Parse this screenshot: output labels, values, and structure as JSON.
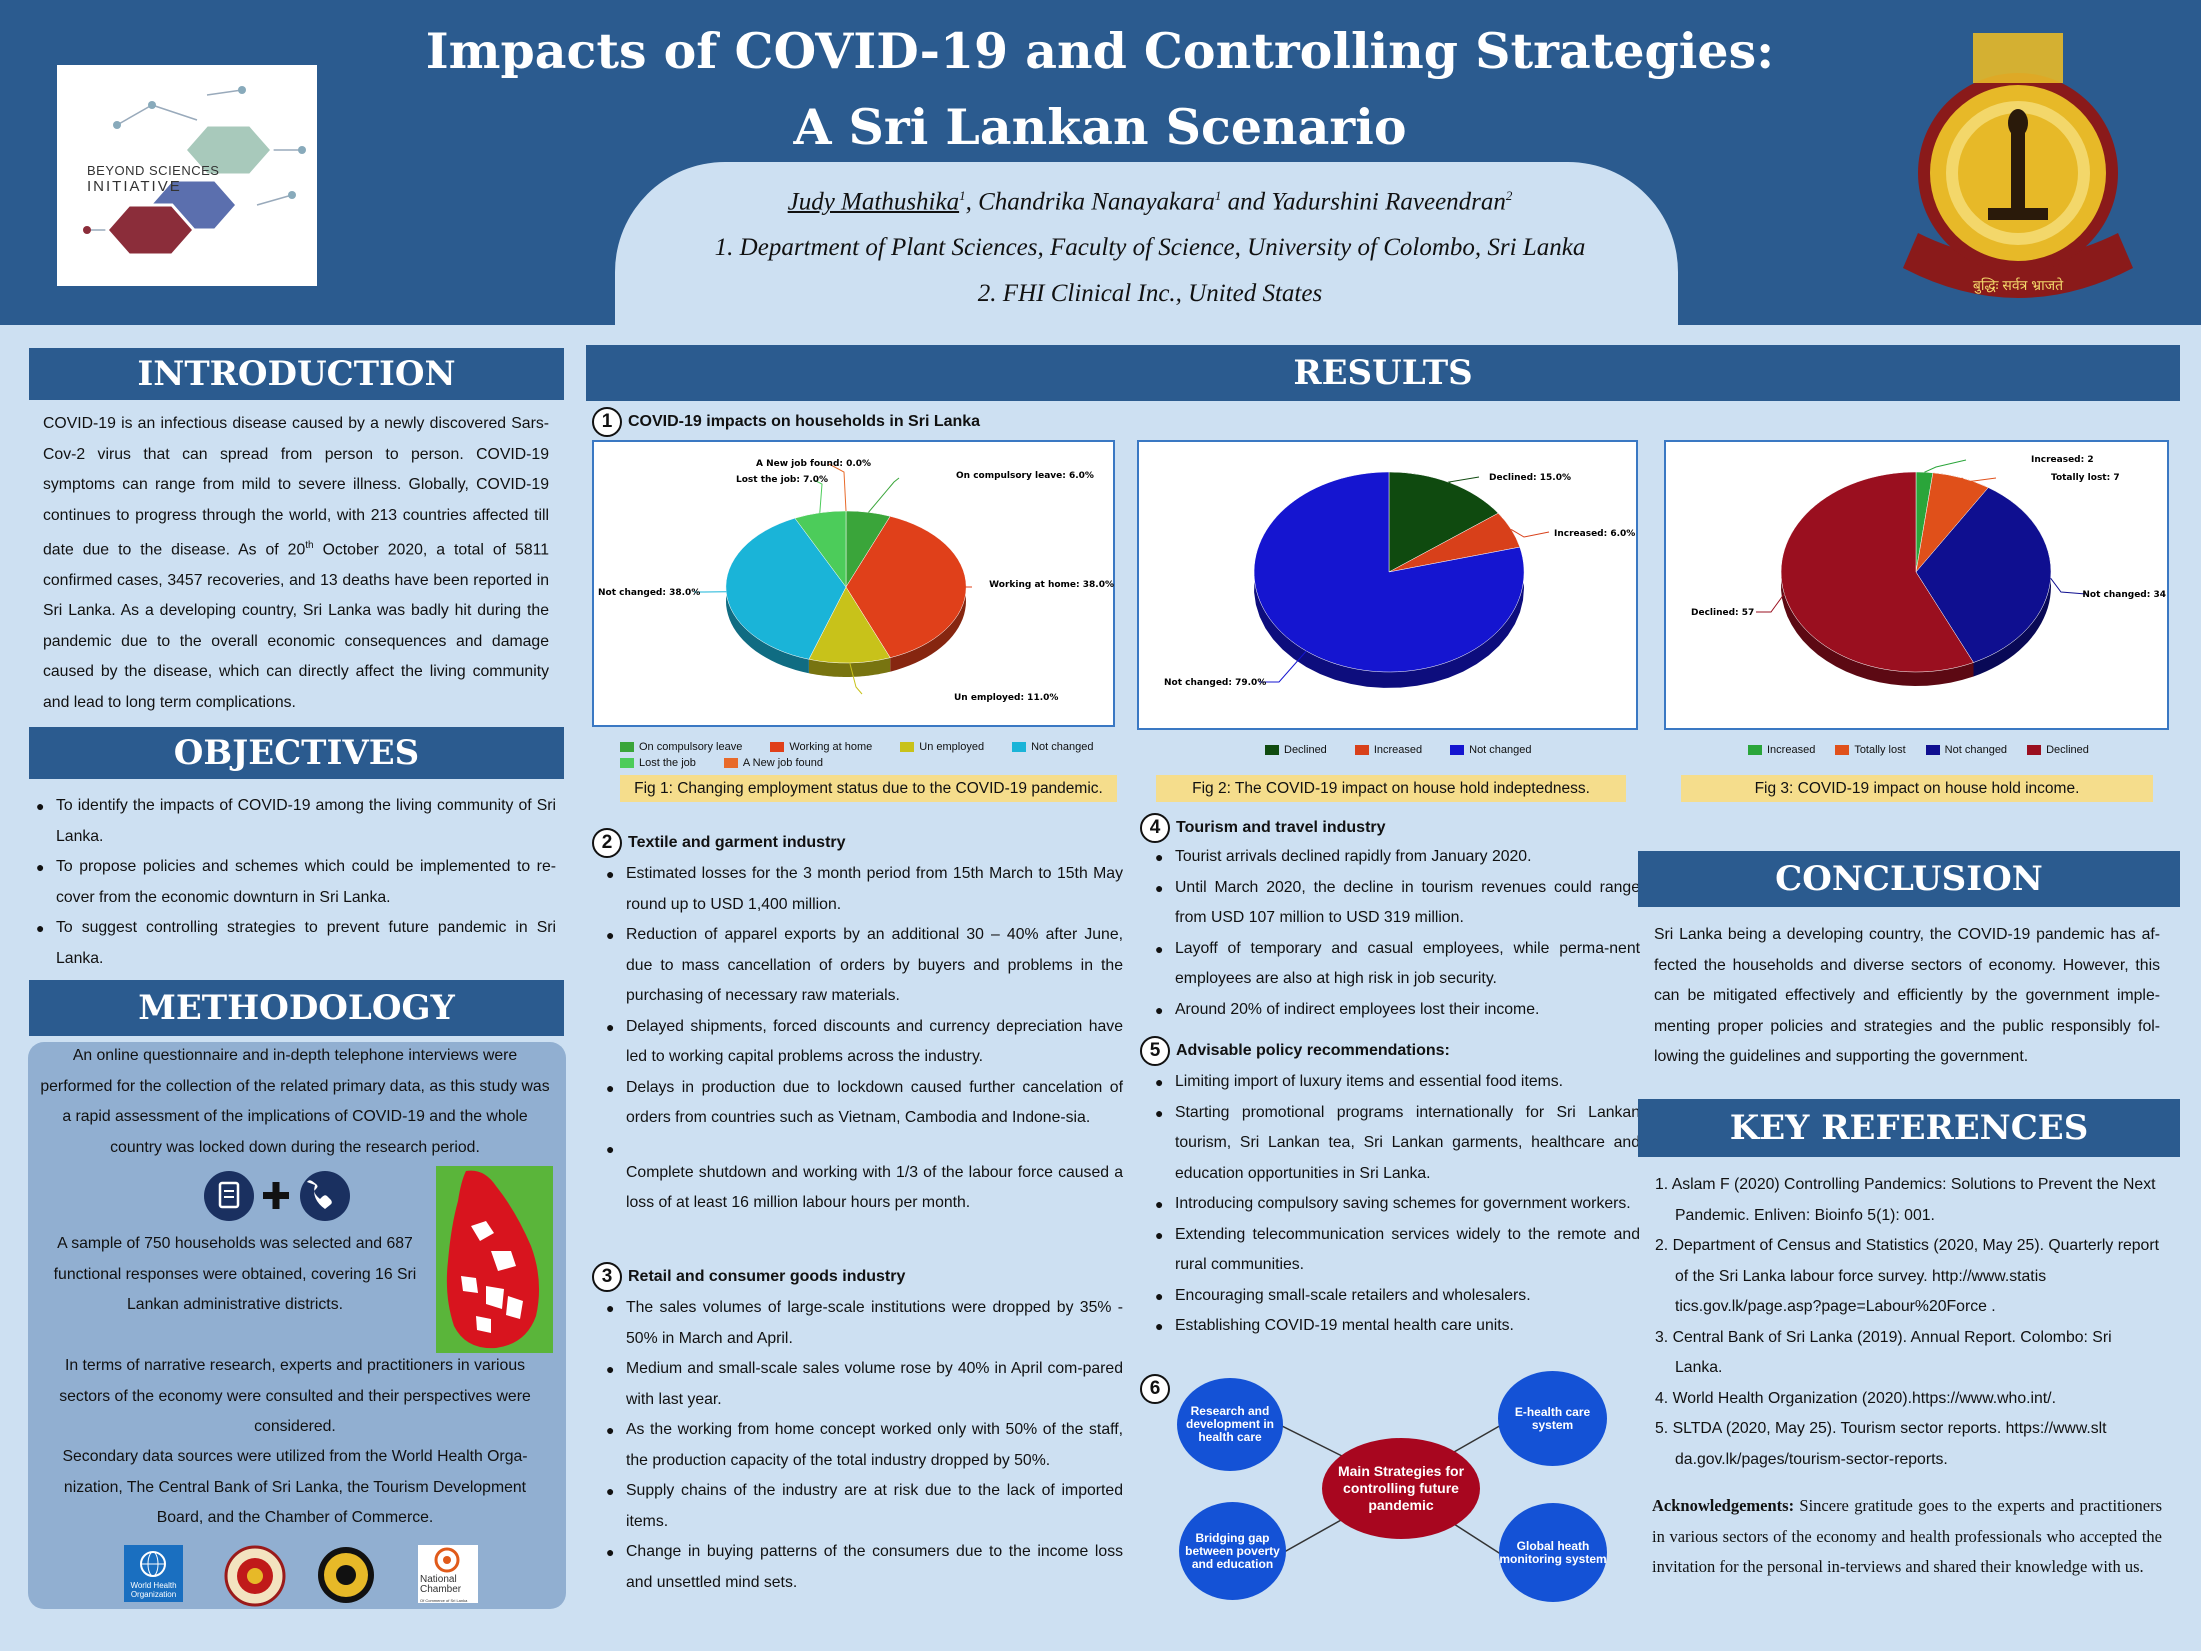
{
  "header": {
    "title_line1": "Impacts of COVID-19 and Controlling Strategies:",
    "title_line2": "A Sri Lankan Scenario",
    "authors": {
      "first": "Judy Mathushika",
      "sup1": "1",
      "rest": ", Chandrika Nanayakara",
      "sup2": "1",
      "rest2": " and Yadurshini Raveendran",
      "sup3": "2"
    },
    "affiliation1": "1. Department of Plant Sciences, Faculty of Science, University of Colombo, Sri Lanka",
    "affiliation2": "2. FHI Clinical Inc., United States",
    "logo_left": {
      "line1": "BEYOND SCIENCES",
      "line2": "INITIATIVE"
    },
    "crest_motto": "बुद्धिः सर्वत्र भ्राजते"
  },
  "introduction": {
    "heading": "INTRODUCTION",
    "text_a": "COVID-19 is an infectious disease caused by a newly discovered Sars-Cov-2 virus that can spread from person to person. COVID-19 symptoms can range from mild to severe illness. Globally, COVID-19 continues to progress through the world, with 213 countries affected till date due to the disease. As of 20",
    "text_sup": "th",
    "text_b": " October 2020, a total of 5811 confirmed cases, 3457 recoveries, and 13 deaths have been reported in Sri Lanka. As a developing country, Sri Lanka was badly hit during the pandemic due to the overall economic consequences and damage caused by the disease, which can directly affect the living community and lead to long term complications."
  },
  "objectives": {
    "heading": "OBJECTIVES",
    "items": [
      "To identify the impacts of COVID-19 among the living community of Sri Lanka.",
      "To propose policies and schemes which could be implemented to re-cover from the economic downturn in Sri Lanka.",
      "To suggest controlling strategies to prevent future pandemic in Sri Lanka."
    ]
  },
  "methodology": {
    "heading": "METHODOLOGY",
    "p1": "An online questionnaire and in-depth telephone interviews were performed for the collection of the related primary data, as this study was a rapid assessment of the implications of COVID-19 and the whole country was locked down during the research period.",
    "p2": "A sample of 750 households was selected and 687 functional responses were obtained, covering 16 Sri Lankan administrative districts.",
    "p3": "In terms of narrative research, experts and practitioners in various sectors of the economy were consulted and their perspectives were considered.",
    "p4": "Secondary data sources were utilized from the World Health Orga-nization, The Central Bank of Sri Lanka, the Tourism Development Board, and the Chamber of Commerce.",
    "logos": {
      "who_line1": "World Health",
      "who_line2": "Organization",
      "chamber_line1": "National",
      "chamber_line2": "Chamber",
      "chamber_line3": "Of Commerce of Sri Lanka"
    }
  },
  "results": {
    "heading": "RESULTS",
    "s1": {
      "num": "1",
      "title": "COVID-19 impacts on households in Sri Lanka"
    },
    "s2": {
      "num": "2",
      "title": "Textile and garment industry",
      "items": [
        "Estimated losses for the 3 month period from 15th March to 15th May round up to USD 1,400 million.",
        "Reduction of apparel exports by an additional 30 – 40% after June, due to mass cancellation of orders by buyers and problems in the purchasing of necessary raw materials.",
        "Delayed shipments, forced discounts and currency depreciation have led to working capital problems across the industry.",
        "Delays in production due to lockdown caused further cancelation of orders from countries such as Vietnam, Cambodia and Indone-sia.",
        "Complete shutdown and working with 1/3 of the labour force caused a loss of at least 16 million labour hours per month."
      ]
    },
    "s3": {
      "num": "3",
      "title": "Retail and consumer goods industry",
      "items": [
        "The sales volumes of large-scale institutions were dropped by 35% - 50% in March and April.",
        "Medium and small-scale sales volume rose by 40% in April com-pared with last year.",
        "As the working from home concept worked only with 50% of the staff, the production capacity of the total industry dropped by 50%.",
        "Supply chains of the industry are at risk due to the lack of imported items.",
        "Change in buying patterns of the consumers due to the income loss and unsettled mind sets."
      ]
    },
    "s4": {
      "num": "4",
      "title": "Tourism and travel industry",
      "items": [
        "Tourist arrivals declined rapidly from January 2020.",
        "Until March 2020, the decline in tourism revenues could range from USD 107 million to USD 319 million.",
        "Layoff of temporary and casual employees, while perma-nent employees are also at high risk in job security.",
        "Around 20% of indirect employees lost their income."
      ]
    },
    "s5": {
      "num": "5",
      "title": "Advisable policy recommendations:",
      "items": [
        "Limiting import of luxury items and essential food items.",
        "Starting promotional programs internationally for Sri Lankan tourism, Sri Lankan tea, Sri Lankan garments, healthcare and education opportunities in Sri Lanka.",
        "Introducing compulsory saving schemes for government workers.",
        "Extending telecommunication services  widely to the remote and rural communities.",
        "Encouraging small-scale retailers and wholesalers.",
        "Establishing COVID-19 mental health care units."
      ]
    },
    "s6": {
      "num": "6",
      "center": "Main Strategies for controlling future pandemic",
      "b1": "Research and development in health care",
      "b2": "E-health care system",
      "b3": "Bridging gap between poverty and education",
      "b4": "Global heath monitoring system"
    }
  },
  "chart_data": [
    {
      "type": "pie",
      "caption": "Fig 1: Changing employment status due to the COVID-19 pandemic.",
      "slices": [
        {
          "name": "On compulsory leave",
          "value": 6.0,
          "label": "On compulsory leave: 6.0%",
          "color": "#3aa53a"
        },
        {
          "name": "Working at home",
          "value": 38.0,
          "label": "Working at home: 38.0%",
          "color": "#e0401a"
        },
        {
          "name": "Un employed",
          "value": 11.0,
          "label": "Un employed: 11.0%",
          "color": "#c8c21a"
        },
        {
          "name": "Not changed",
          "value": 38.0,
          "label": "Not changed: 38.0%",
          "color": "#1ab4d8"
        },
        {
          "name": "Lost the job",
          "value": 7.0,
          "label": "Lost the job: 7.0%",
          "color": "#4ccc5a"
        },
        {
          "name": "A New job found",
          "value": 0.0,
          "label": "A New job found: 0.0%",
          "color": "#e86a2a"
        }
      ]
    },
    {
      "type": "pie",
      "caption": "Fig 2: The COVID-19 impact on house hold indeptedness.",
      "slices": [
        {
          "name": "Declined",
          "value": 15.0,
          "label": "Declined: 15.0%",
          "color": "#0f4a0f"
        },
        {
          "name": "Increased",
          "value": 6.0,
          "label": "Increased: 6.0%",
          "color": "#d8401a"
        },
        {
          "name": "Not changed",
          "value": 79.0,
          "label": "Not changed: 79.0%",
          "color": "#1515d0"
        }
      ]
    },
    {
      "type": "pie",
      "caption": "Fig 3: COVID-19 impact on house hold income.",
      "slices": [
        {
          "name": "Increased",
          "value": 2,
          "label": "Increased: 2",
          "color": "#2aa53a"
        },
        {
          "name": "Totally lost",
          "value": 7,
          "label": "Totally lost: 7",
          "color": "#e0501a"
        },
        {
          "name": "Not changed",
          "value": 34,
          "label": "Not changed: 34",
          "color": "#0f0f90"
        },
        {
          "name": "Declined",
          "value": 57,
          "label": "Declined: 57",
          "color": "#9a0f1f"
        }
      ]
    }
  ],
  "conclusion": {
    "heading": "CONCLUSION",
    "text": "Sri Lanka being a developing country, the COVID-19 pandemic has af-fected the households and diverse sectors of economy. However, this can be mitigated effectively and efficiently by the government imple-menting proper policies and strategies and the public responsibly fol-lowing the guidelines and supporting the government."
  },
  "references": {
    "heading": "KEY REFERENCES",
    "items": [
      "1. Aslam F (2020) Controlling Pandemics: Solutions to Prevent the Next Pandemic. Enliven: Bioinfo 5(1): 001.",
      "2. Department of Census and Statistics (2020, May 25). Quarterly report of the Sri Lanka labour force survey. http://www.statis tics.gov.lk/page.asp?page=Labour%20Force .",
      "3. Central Bank of Sri Lanka (2019). Annual Report. Colombo: Sri Lanka.",
      "4. World Health Organization (2020).https://www.who.int/.",
      "5. SLTDA (2020, May 25). Tourism sector reports. https://www.slt da.gov.lk/pages/tourism-sector-reports."
    ],
    "ack_label": "Acknowledgements:",
    "ack_text": " Sincere gratitude goes to the experts and practitioners in various sectors of the economy and health professionals who accepted the invitation for the personal in-terviews and shared their knowledge with us."
  }
}
